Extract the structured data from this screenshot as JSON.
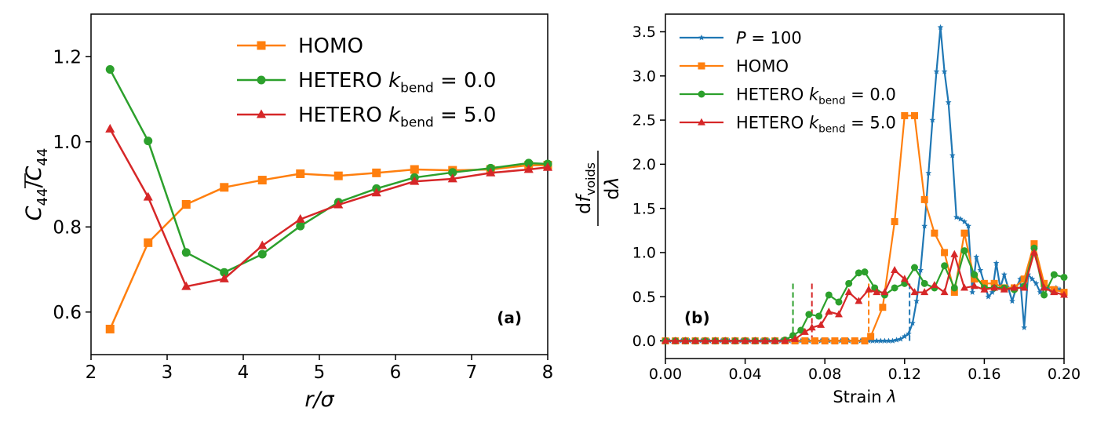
{
  "chart_data": [
    {
      "type": "line",
      "panel_label": "(a)",
      "xlabel": "r/σ",
      "ylabel": "C44/C̄44",
      "xlim": [
        2,
        8
      ],
      "ylim": [
        0.5,
        1.3
      ],
      "xticks": [
        2,
        3,
        4,
        5,
        6,
        7,
        8
      ],
      "yticks": [
        0.6,
        0.8,
        1.0,
        1.2
      ],
      "xtick_labels": [
        "2",
        "3",
        "4",
        "5",
        "6",
        "7",
        "8"
      ],
      "ytick_labels": [
        "0.6",
        "0.8",
        "1.0",
        "1.2"
      ],
      "grid": false,
      "legend_position": "top-right",
      "series": [
        {
          "name": "HOMO",
          "color": "#ff7f0e",
          "marker": "square",
          "x": [
            2.25,
            2.75,
            3.25,
            3.75,
            4.25,
            4.75,
            5.25,
            5.75,
            6.25,
            6.75,
            7.25,
            7.75,
            8.0
          ],
          "y": [
            0.56,
            0.763,
            0.853,
            0.893,
            0.91,
            0.925,
            0.92,
            0.927,
            0.935,
            0.933,
            0.935,
            0.945,
            0.945
          ]
        },
        {
          "name": "HETERO k_bend = 0.0",
          "color": "#2ca02c",
          "marker": "circle",
          "x": [
            2.25,
            2.75,
            3.25,
            3.75,
            4.25,
            4.75,
            5.25,
            5.75,
            6.25,
            6.75,
            7.25,
            7.75,
            8.0
          ],
          "y": [
            1.17,
            1.002,
            0.74,
            0.693,
            0.736,
            0.802,
            0.858,
            0.89,
            0.916,
            0.928,
            0.938,
            0.95,
            0.948
          ]
        },
        {
          "name": "HETERO k_bend = 5.0",
          "color": "#d62728",
          "marker": "triangle",
          "x": [
            2.25,
            2.75,
            3.25,
            3.75,
            4.25,
            4.75,
            5.25,
            5.75,
            6.25,
            6.75,
            7.25,
            7.75,
            8.0
          ],
          "y": [
            1.03,
            0.87,
            0.66,
            0.678,
            0.756,
            0.818,
            0.852,
            0.88,
            0.907,
            0.913,
            0.927,
            0.935,
            0.94
          ]
        }
      ]
    },
    {
      "type": "line",
      "panel_label": "(b)",
      "xlabel": "Strain λ",
      "ylabel": "dfvoids/dλ",
      "xlim": [
        0,
        0.2
      ],
      "ylim": [
        -0.2,
        3.7
      ],
      "xticks": [
        0,
        0.04,
        0.08,
        0.12,
        0.16,
        0.2
      ],
      "yticks": [
        0,
        0.5,
        1.0,
        1.5,
        2.0,
        2.5,
        3.0,
        3.5
      ],
      "xtick_labels": [
        "0.00",
        "0.04",
        "0.08",
        "0.12",
        "0.16",
        "0.20"
      ],
      "ytick_labels": [
        "0.0",
        "0.5",
        "1.0",
        "1.5",
        "2.0",
        "2.5",
        "3.0",
        "3.5"
      ],
      "grid": false,
      "legend_position": "top-left",
      "vlines": [
        {
          "x": 0.064,
          "color": "#2ca02c"
        },
        {
          "x": 0.0735,
          "color": "#d62728"
        },
        {
          "x": 0.102,
          "color": "#ff7f0e"
        },
        {
          "x": 0.1225,
          "color": "#1f77b4"
        }
      ],
      "series": [
        {
          "name": "P = 100",
          "color": "#1f77b4",
          "marker": "star",
          "x": [
            0,
            0.002,
            0.004,
            0.006,
            0.008,
            0.01,
            0.012,
            0.014,
            0.016,
            0.018,
            0.02,
            0.022,
            0.024,
            0.026,
            0.028,
            0.03,
            0.032,
            0.034,
            0.036,
            0.038,
            0.04,
            0.042,
            0.044,
            0.046,
            0.048,
            0.05,
            0.052,
            0.054,
            0.056,
            0.058,
            0.06,
            0.062,
            0.064,
            0.066,
            0.068,
            0.07,
            0.072,
            0.074,
            0.076,
            0.078,
            0.08,
            0.082,
            0.084,
            0.086,
            0.088,
            0.09,
            0.092,
            0.094,
            0.096,
            0.098,
            0.1,
            0.102,
            0.104,
            0.106,
            0.108,
            0.11,
            0.112,
            0.114,
            0.116,
            0.118,
            0.12,
            0.122,
            0.124,
            0.126,
            0.128,
            0.13,
            0.132,
            0.134,
            0.136,
            0.138,
            0.14,
            0.142,
            0.144,
            0.146,
            0.148,
            0.15,
            0.152,
            0.154,
            0.156,
            0.158,
            0.16,
            0.162,
            0.164,
            0.166,
            0.168,
            0.17,
            0.172,
            0.174,
            0.176,
            0.178,
            0.18,
            0.182,
            0.184,
            0.186,
            0.188,
            0.19,
            0.192,
            0.194,
            0.196,
            0.198,
            0.2
          ],
          "y": [
            0,
            0,
            0,
            0,
            0,
            0,
            0,
            0,
            0,
            0,
            0,
            0,
            0,
            0,
            0,
            0,
            0,
            0,
            0,
            0,
            0,
            0,
            0,
            0,
            0,
            0,
            0,
            0,
            0,
            0,
            0,
            0,
            0,
            0,
            0,
            0,
            0,
            0,
            0,
            0,
            0,
            0,
            0,
            0,
            0,
            0,
            0,
            0,
            0,
            0,
            0,
            0,
            0,
            0,
            0,
            0,
            0,
            0,
            0.01,
            0.02,
            0.05,
            0.08,
            0.2,
            0.45,
            0.8,
            1.3,
            1.9,
            2.5,
            3.05,
            3.55,
            3.05,
            2.7,
            2.1,
            1.4,
            1.38,
            1.35,
            1.3,
            0.55,
            0.95,
            0.8,
            0.65,
            0.5,
            0.55,
            0.88,
            0.6,
            0.75,
            0.6,
            0.45,
            0.6,
            0.7,
            0.15,
            0.75,
            0.7,
            0.65,
            0.55,
            0.65,
            0.6,
            0.55,
            0.6,
            0.58,
            0.55
          ]
        },
        {
          "name": "HOMO",
          "color": "#ff7f0e",
          "marker": "square",
          "x": [
            0,
            0.005,
            0.01,
            0.015,
            0.02,
            0.025,
            0.03,
            0.035,
            0.04,
            0.045,
            0.05,
            0.055,
            0.06,
            0.065,
            0.07,
            0.075,
            0.08,
            0.085,
            0.09,
            0.095,
            0.1,
            0.103,
            0.109,
            0.115,
            0.12,
            0.125,
            0.13,
            0.135,
            0.14,
            0.145,
            0.15,
            0.155,
            0.16,
            0.165,
            0.17,
            0.175,
            0.18,
            0.185,
            0.19,
            0.195,
            0.2
          ],
          "y": [
            0,
            0,
            0,
            0,
            0,
            0,
            0,
            0,
            0,
            0,
            0,
            0,
            0,
            0,
            0,
            0,
            0,
            0,
            0,
            0,
            0,
            0.05,
            0.38,
            1.35,
            2.55,
            2.55,
            1.6,
            1.22,
            1.0,
            0.55,
            1.22,
            0.7,
            0.65,
            0.65,
            0.6,
            0.6,
            0.7,
            1.1,
            0.65,
            0.58,
            0.55
          ]
        },
        {
          "name": "HETERO k_bend = 0.0",
          "color": "#2ca02c",
          "marker": "circle",
          "x": [
            0,
            0.005,
            0.01,
            0.015,
            0.02,
            0.025,
            0.03,
            0.035,
            0.04,
            0.045,
            0.05,
            0.055,
            0.06,
            0.064,
            0.068,
            0.072,
            0.077,
            0.082,
            0.087,
            0.092,
            0.097,
            0.1,
            0.105,
            0.11,
            0.115,
            0.12,
            0.125,
            0.13,
            0.135,
            0.14,
            0.145,
            0.15,
            0.155,
            0.16,
            0.165,
            0.17,
            0.175,
            0.18,
            0.185,
            0.19,
            0.195,
            0.2
          ],
          "y": [
            0,
            0,
            0,
            0,
            0,
            0,
            0,
            0,
            0,
            0,
            0,
            0,
            0.01,
            0.06,
            0.12,
            0.3,
            0.28,
            0.52,
            0.44,
            0.65,
            0.77,
            0.78,
            0.6,
            0.52,
            0.6,
            0.65,
            0.83,
            0.65,
            0.6,
            0.85,
            0.6,
            1.02,
            0.75,
            0.6,
            0.6,
            0.6,
            0.58,
            0.62,
            1.05,
            0.52,
            0.75,
            0.72
          ]
        },
        {
          "name": "HETERO k_bend = 5.0",
          "color": "#d62728",
          "marker": "triangle",
          "x": [
            0,
            0.005,
            0.01,
            0.015,
            0.02,
            0.025,
            0.03,
            0.035,
            0.04,
            0.045,
            0.05,
            0.055,
            0.06,
            0.065,
            0.07,
            0.0735,
            0.078,
            0.082,
            0.087,
            0.092,
            0.097,
            0.102,
            0.106,
            0.11,
            0.115,
            0.12,
            0.125,
            0.13,
            0.135,
            0.14,
            0.145,
            0.15,
            0.155,
            0.16,
            0.165,
            0.17,
            0.175,
            0.18,
            0.185,
            0.19,
            0.195,
            0.2
          ],
          "y": [
            0,
            0,
            0,
            0,
            0,
            0,
            0,
            0,
            0,
            0,
            0,
            0,
            0,
            0.02,
            0.1,
            0.15,
            0.18,
            0.33,
            0.3,
            0.55,
            0.45,
            0.58,
            0.55,
            0.55,
            0.8,
            0.7,
            0.55,
            0.55,
            0.63,
            0.55,
            0.98,
            0.6,
            0.62,
            0.58,
            0.6,
            0.58,
            0.6,
            0.6,
            1.0,
            0.6,
            0.55,
            0.52
          ]
        }
      ]
    }
  ]
}
